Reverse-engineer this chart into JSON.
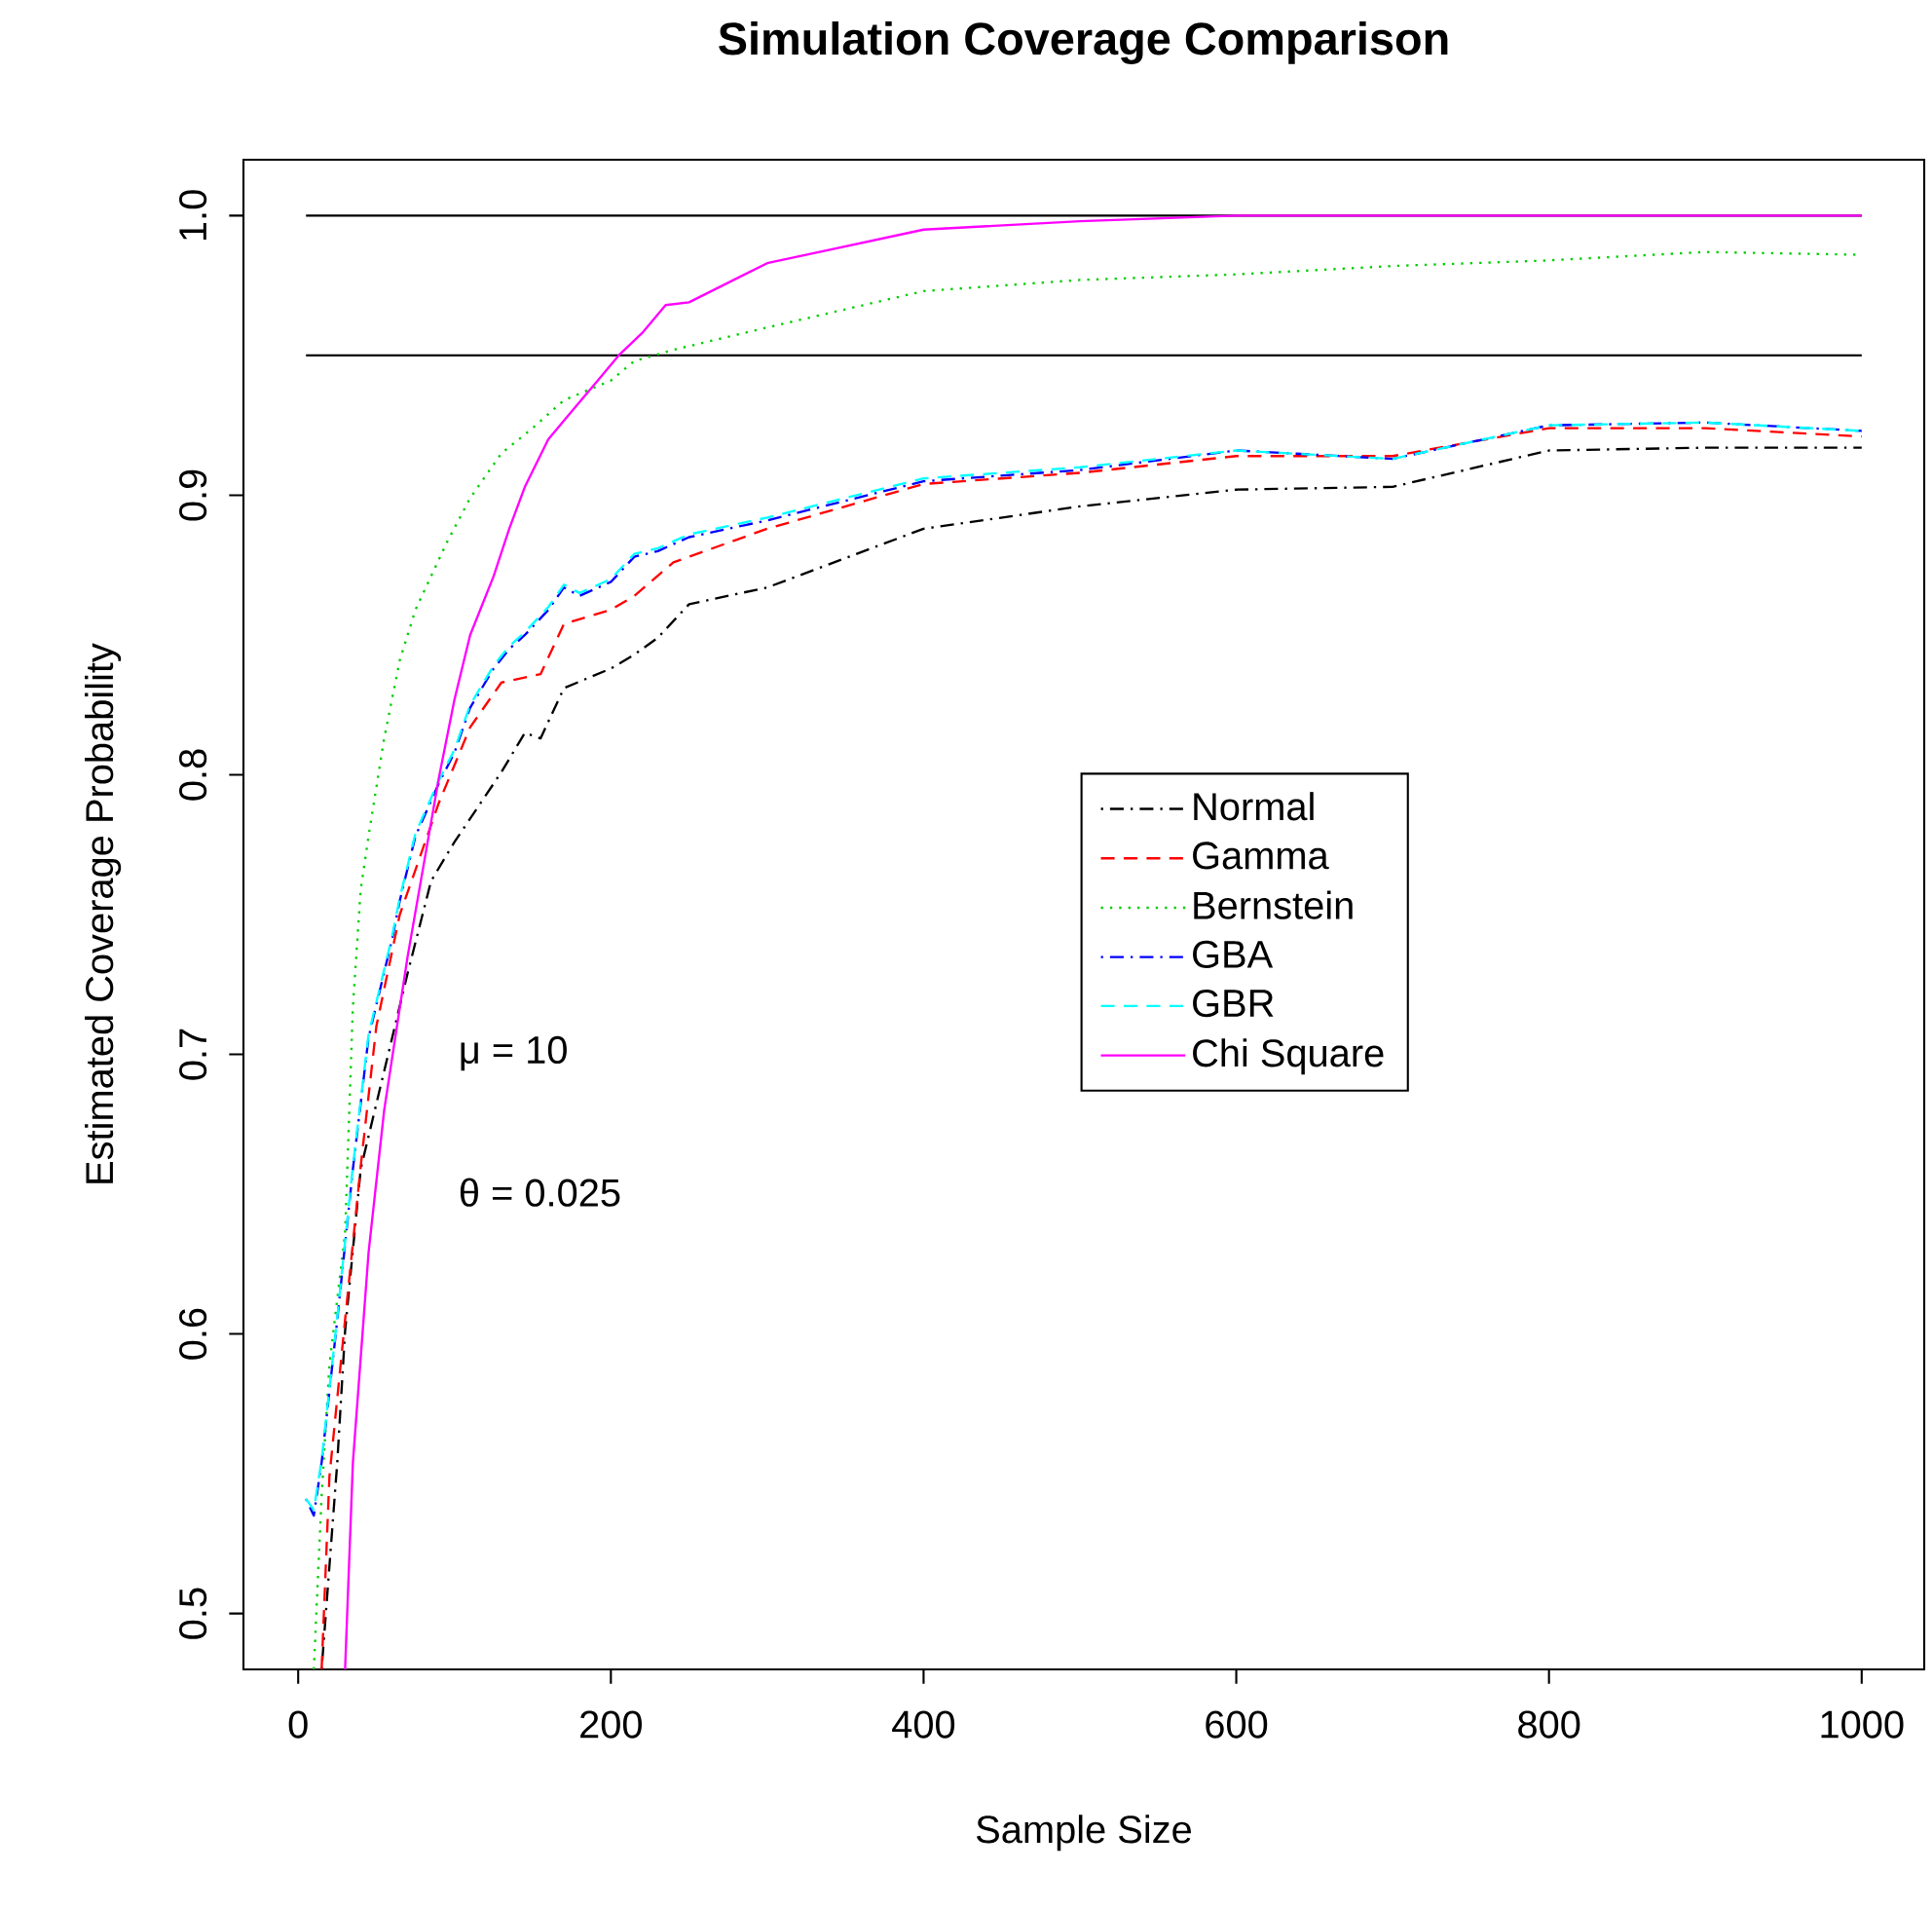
{
  "chart_data": {
    "type": "line",
    "title": "Simulation Coverage Comparison",
    "xlabel": "Sample Size",
    "ylabel": "Estimated Coverage Probability",
    "xlim": [
      -35,
      1040
    ],
    "ylim": [
      0.48,
      1.02
    ],
    "xticks": [
      0,
      200,
      400,
      600,
      800,
      1000
    ],
    "yticks": [
      {
        "value": 0.5,
        "label": "0.5"
      },
      {
        "value": 0.6,
        "label": "0.6"
      },
      {
        "value": 0.7,
        "label": "0.7"
      },
      {
        "value": 0.8,
        "label": "0.8"
      },
      {
        "value": 0.9,
        "label": "0.9"
      },
      {
        "value": 1.0,
        "label": "1.0"
      }
    ],
    "grid": false,
    "legend": "right",
    "marker": "none",
    "ref_lines": [
      {
        "axis": "y",
        "value": 1.0,
        "color": "#000000",
        "line_style": "solid"
      },
      {
        "axis": "y",
        "value": 0.95,
        "color": "#000000",
        "line_style": "solid"
      }
    ],
    "annotations": [
      "μ = 10",
      "θ = 0.025"
    ],
    "series": [
      {
        "name": "Normal",
        "color": "#000000",
        "line_style": "dashdot",
        "x": [
          15,
          25,
          30,
          40,
          55,
          70,
          85,
          100,
          130,
          145,
          155,
          170,
          200,
          215,
          230,
          250,
          300,
          400,
          500,
          600,
          700,
          800,
          900,
          1000
        ],
        "values": [
          0.48,
          0.554,
          0.601,
          0.659,
          0.694,
          0.729,
          0.762,
          0.776,
          0.801,
          0.815,
          0.813,
          0.831,
          0.838,
          0.843,
          0.849,
          0.861,
          0.867,
          0.888,
          0.896,
          0.902,
          0.903,
          0.916,
          0.917,
          0.917
        ]
      },
      {
        "name": "Gamma",
        "color": "#ff0000",
        "line_style": "dashed",
        "x": [
          15,
          20,
          30,
          40,
          50,
          65,
          90,
          110,
          130,
          155,
          170,
          200,
          215,
          240,
          250,
          300,
          400,
          500,
          600,
          700,
          800,
          900,
          1000
        ],
        "values": [
          0.48,
          0.549,
          0.605,
          0.66,
          0.71,
          0.75,
          0.79,
          0.817,
          0.833,
          0.836,
          0.854,
          0.859,
          0.864,
          0.876,
          0.878,
          0.888,
          0.904,
          0.908,
          0.914,
          0.914,
          0.924,
          0.924,
          0.921
        ]
      },
      {
        "name": "Bernstein",
        "color": "#00cd00",
        "line_style": "dotted",
        "x": [
          10,
          15,
          20,
          30,
          35,
          40,
          45,
          55,
          65,
          75,
          95,
          110,
          130,
          150,
          170,
          200,
          215,
          240,
          300,
          400,
          500,
          600,
          700,
          800,
          900,
          1000
        ],
        "values": [
          0.48,
          0.542,
          0.589,
          0.636,
          0.717,
          0.759,
          0.778,
          0.813,
          0.841,
          0.859,
          0.883,
          0.899,
          0.915,
          0.924,
          0.934,
          0.941,
          0.948,
          0.952,
          0.96,
          0.973,
          0.977,
          0.979,
          0.982,
          0.984,
          0.987,
          0.986
        ]
      },
      {
        "name": "GBA",
        "color": "#0000ff",
        "line_style": "dashdot",
        "x": [
          5,
          10,
          15,
          25,
          35,
          45,
          60,
          65,
          75,
          90,
          100,
          110,
          125,
          135,
          145,
          160,
          170,
          180,
          200,
          215,
          230,
          250,
          300,
          400,
          500,
          600,
          700,
          800,
          900,
          1000
        ],
        "values": [
          0.541,
          0.535,
          0.554,
          0.605,
          0.659,
          0.706,
          0.741,
          0.755,
          0.778,
          0.797,
          0.808,
          0.824,
          0.838,
          0.845,
          0.85,
          0.859,
          0.867,
          0.864,
          0.869,
          0.878,
          0.88,
          0.885,
          0.891,
          0.905,
          0.909,
          0.916,
          0.913,
          0.925,
          0.926,
          0.923
        ]
      },
      {
        "name": "GBR",
        "color": "#00ffff",
        "line_style": "dashed",
        "x": [
          5,
          10,
          15,
          25,
          35,
          45,
          60,
          65,
          75,
          90,
          100,
          110,
          125,
          135,
          145,
          160,
          170,
          180,
          200,
          215,
          230,
          250,
          300,
          400,
          500,
          600,
          700,
          800,
          900,
          1000
        ],
        "values": [
          0.541,
          0.537,
          0.555,
          0.606,
          0.66,
          0.707,
          0.742,
          0.756,
          0.779,
          0.798,
          0.809,
          0.825,
          0.839,
          0.846,
          0.851,
          0.86,
          0.868,
          0.865,
          0.87,
          0.879,
          0.881,
          0.886,
          0.892,
          0.906,
          0.91,
          0.916,
          0.913,
          0.925,
          0.926,
          0.923
        ]
      },
      {
        "name": "Chi Square",
        "color": "#ff00ff",
        "line_style": "solid",
        "x": [
          30,
          35,
          45,
          55,
          70,
          90,
          100,
          110,
          125,
          135,
          145,
          160,
          175,
          190,
          205,
          220,
          235,
          250,
          300,
          400,
          500,
          600,
          700,
          800,
          900,
          1000
        ],
        "values": [
          0.48,
          0.554,
          0.629,
          0.68,
          0.735,
          0.799,
          0.827,
          0.85,
          0.871,
          0.888,
          0.903,
          0.92,
          0.93,
          0.94,
          0.95,
          0.958,
          0.968,
          0.969,
          0.983,
          0.995,
          0.998,
          1.0,
          1.0,
          1.0,
          1.0,
          1.0
        ]
      }
    ]
  }
}
